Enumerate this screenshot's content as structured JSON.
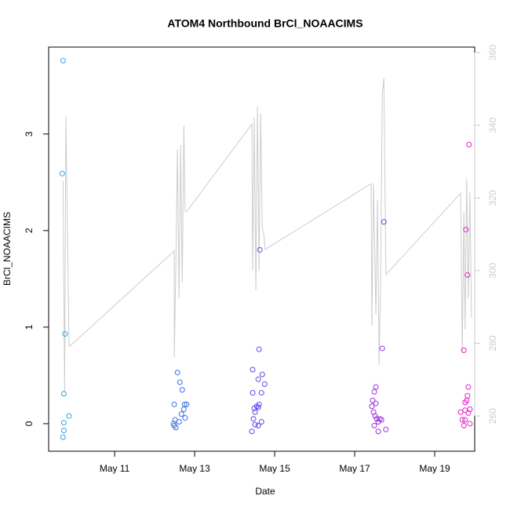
{
  "chart_data": {
    "type": "scatter",
    "title": "ATOM4 Northbound BrCl_NOAACIMS",
    "xlabel": "Date",
    "ylabel": "BrCl_NOAACIMS",
    "xlim": [
      9.35,
      20.0
    ],
    "xticks": [
      {
        "value": 11,
        "label": "May 11"
      },
      {
        "value": 13,
        "label": "May 13"
      },
      {
        "value": 15,
        "label": "May 15"
      },
      {
        "value": 17,
        "label": "May 17"
      },
      {
        "value": 19,
        "label": "May 19"
      }
    ],
    "ylim": [
      -0.285,
      3.9
    ],
    "yticks": [
      0,
      1,
      2,
      3
    ],
    "y2lim": [
      250.3,
      361.5
    ],
    "y2ticks": [
      260,
      280,
      300,
      320,
      340,
      360
    ],
    "y2color": "#cccccc",
    "series": [
      {
        "color": "#2aa5e5",
        "x": [
          9.71,
          9.69,
          9.76,
          9.73,
          9.86,
          9.73,
          9.73,
          9.71
        ],
        "values": [
          3.76,
          2.59,
          0.93,
          0.31,
          0.08,
          0.01,
          -0.07,
          -0.14
        ]
      },
      {
        "color": "#3a6fe8",
        "x": [
          12.57,
          12.63,
          12.69,
          12.49,
          12.75,
          12.8,
          12.73,
          12.67,
          12.51,
          12.76,
          12.61,
          12.47,
          12.49,
          12.53
        ],
        "values": [
          0.53,
          0.43,
          0.35,
          0.2,
          0.2,
          0.2,
          0.15,
          0.1,
          0.04,
          0.06,
          0.02,
          0,
          -0.02,
          -0.04
        ]
      },
      {
        "color": "#5a4ae8",
        "x": [
          14.61,
          14.63,
          14.45,
          14.69,
          14.59,
          14.75,
          14.45,
          14.67,
          14.61,
          14.55,
          14.49,
          14.59,
          14.51,
          14.47,
          14.67,
          14.51,
          14.59,
          14.43
        ],
        "values": [
          0.77,
          1.8,
          0.56,
          0.51,
          0.46,
          0.41,
          0.32,
          0.32,
          0.2,
          0.18,
          0.16,
          0.17,
          0.12,
          0.05,
          0.02,
          -0.01,
          -0.02,
          -0.08
        ]
      },
      {
        "color": "#9b30e0",
        "x": [
          17.73,
          17.69,
          17.53,
          17.49,
          17.45,
          17.53,
          17.43,
          17.47,
          17.51,
          17.55,
          17.63,
          17.67,
          17.59,
          17.49,
          17.78,
          17.59
        ],
        "values": [
          2.09,
          0.78,
          0.38,
          0.33,
          0.24,
          0.21,
          0.18,
          0.12,
          0.08,
          0.05,
          0.05,
          0.04,
          0.02,
          -0.02,
          -0.06,
          -0.08
        ]
      },
      {
        "color": "#e81cc8",
        "x": [
          19.86,
          19.78,
          19.82,
          19.73,
          19.84,
          19.82,
          19.8,
          19.76,
          19.88,
          19.76,
          19.65,
          19.84,
          19.69,
          19.76,
          19.88,
          19.73
        ],
        "values": [
          2.89,
          2.01,
          1.54,
          0.76,
          0.38,
          0.29,
          0.24,
          0.22,
          0.15,
          0.14,
          0.12,
          0.11,
          0.04,
          0.04,
          0,
          -0.02
        ]
      },
      {
        "color": "#cccccc",
        "axis": "y2",
        "x": [
          9.71,
          9.75,
          9.78,
          9.86,
          9.88,
          12.49,
          12.49,
          12.53,
          12.57,
          12.61,
          12.65,
          12.69,
          12.73,
          12.76,
          12.8,
          14.43,
          14.45,
          14.49,
          14.53,
          14.57,
          14.61,
          14.65,
          14.69,
          14.73,
          14.76,
          17.41,
          17.43,
          17.47,
          17.53,
          17.57,
          17.61,
          17.65,
          17.69,
          17.73,
          17.78,
          19.65,
          19.69,
          19.73,
          19.76,
          19.8,
          19.84,
          19.88,
          19.92
        ],
        "values": [
          324.8,
          266.5,
          342.5,
          279.4,
          279.2,
          305.4,
          276.2,
          301.0,
          333.4,
          292.4,
          334.5,
          296.7,
          339.9,
          316.2,
          316.2,
          340.3,
          300.0,
          342.1,
          294.6,
          345.3,
          300.0,
          343.2,
          311.8,
          309.7,
          305.8,
          323.9,
          284.8,
          323.9,
          288.1,
          319.4,
          274.0,
          298.9,
          348.6,
          352.9,
          298.9,
          321.3,
          277.3,
          316.2,
          283.8,
          325.2,
          292.4,
          321.6,
          287.0
        ]
      }
    ]
  }
}
